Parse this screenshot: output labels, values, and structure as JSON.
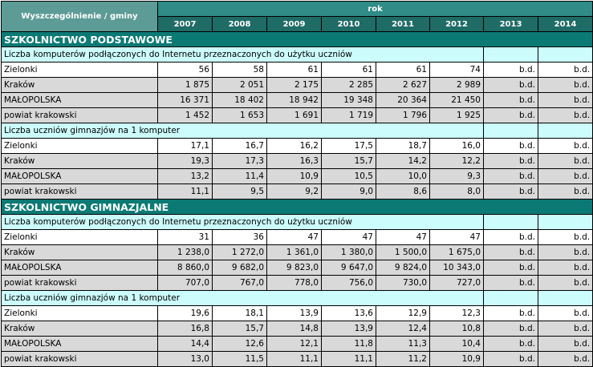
{
  "header": {
    "label": "Wyszczególnienie / gminy",
    "rok": "rok",
    "years": [
      "2007",
      "2008",
      "2009",
      "2010",
      "2011",
      "2012",
      "2013",
      "2014"
    ]
  },
  "sections": [
    {
      "title": "SZKOLNICTWO PODSTAWOWE",
      "groups": [
        {
          "title": "Liczba komputerów podłączonych do Internetu przeznaczonych do użytku uczniów",
          "rows": [
            {
              "name": "Zielonki",
              "values": [
                "56",
                "58",
                "61",
                "61",
                "61",
                "74",
                "b.d.",
                "b.d."
              ]
            },
            {
              "name": "Kraków",
              "values": [
                "1 875",
                "2 051",
                "2 175",
                "2 285",
                "2 627",
                "2 989",
                "b.d.",
                "b.d."
              ]
            },
            {
              "name": "MAŁOPOLSKA",
              "values": [
                "16 371",
                "18 402",
                "18 942",
                "19 348",
                "20 364",
                "21 450",
                "b.d.",
                "b.d."
              ]
            },
            {
              "name": "powiat krakowski",
              "values": [
                "1 452",
                "1 653",
                "1 691",
                "1 719",
                "1 796",
                "1 925",
                "b.d.",
                "b.d."
              ]
            }
          ]
        },
        {
          "title": "Liczba uczniów gimnazjów na 1 komputer",
          "rows": [
            {
              "name": "Zielonki",
              "values": [
                "17,1",
                "16,7",
                "16,2",
                "17,5",
                "18,7",
                "16,0",
                "b.d.",
                "b.d."
              ]
            },
            {
              "name": "Kraków",
              "values": [
                "19,3",
                "17,3",
                "16,3",
                "15,7",
                "14,2",
                "12,2",
                "b.d.",
                "b.d."
              ]
            },
            {
              "name": "MAŁOPOLSKA",
              "values": [
                "13,2",
                "11,4",
                "10,9",
                "10,5",
                "10,0",
                "9,3",
                "b.d.",
                "b.d."
              ]
            },
            {
              "name": "powiat krakowski",
              "values": [
                "11,1",
                "9,5",
                "9,2",
                "9,0",
                "8,6",
                "8,0",
                "b.d.",
                "b.d."
              ]
            }
          ]
        }
      ]
    },
    {
      "title": "SZKOLNICTWO GIMNAZJALNE",
      "groups": [
        {
          "title": "Liczba komputerów podłączonych do Internetu przeznaczonych do użytku uczniów",
          "rows": [
            {
              "name": "Zielonki",
              "values": [
                "31",
                "36",
                "47",
                "47",
                "47",
                "47",
                "b.d.",
                "b.d."
              ]
            },
            {
              "name": "Kraków",
              "values": [
                "1 238,0",
                "1 272,0",
                "1 361,0",
                "1 380,0",
                "1 500,0",
                "1 675,0",
                "b.d.",
                "b.d."
              ]
            },
            {
              "name": "MAŁOPOLSKA",
              "values": [
                "8 860,0",
                "9 682,0",
                "9 823,0",
                "9 647,0",
                "9 824,0",
                "10 343,0",
                "b.d.",
                "b.d."
              ]
            },
            {
              "name": "powiat krakowski",
              "values": [
                "707,0",
                "767,0",
                "778,0",
                "756,0",
                "730,0",
                "727,0",
                "b.d.",
                "b.d."
              ]
            }
          ]
        },
        {
          "title": "Liczba uczniów gimnazjów na 1 komputer",
          "rows": [
            {
              "name": "Zielonki",
              "values": [
                "19,6",
                "18,1",
                "13,9",
                "13,6",
                "12,9",
                "12,3",
                "b.d.",
                "b.d."
              ]
            },
            {
              "name": "Kraków",
              "values": [
                "16,8",
                "15,7",
                "14,8",
                "13,9",
                "12,4",
                "10,8",
                "b.d.",
                "b.d."
              ]
            },
            {
              "name": "MAŁOPOLSKA",
              "values": [
                "14,4",
                "12,6",
                "12,1",
                "11,8",
                "11,3",
                "10,4",
                "b.d.",
                "b.d."
              ]
            },
            {
              "name": "powiat krakowski",
              "values": [
                "13,0",
                "11,5",
                "11,1",
                "11,1",
                "11,2",
                "10,9",
                "b.d.",
                "b.d."
              ]
            }
          ]
        }
      ]
    }
  ]
}
